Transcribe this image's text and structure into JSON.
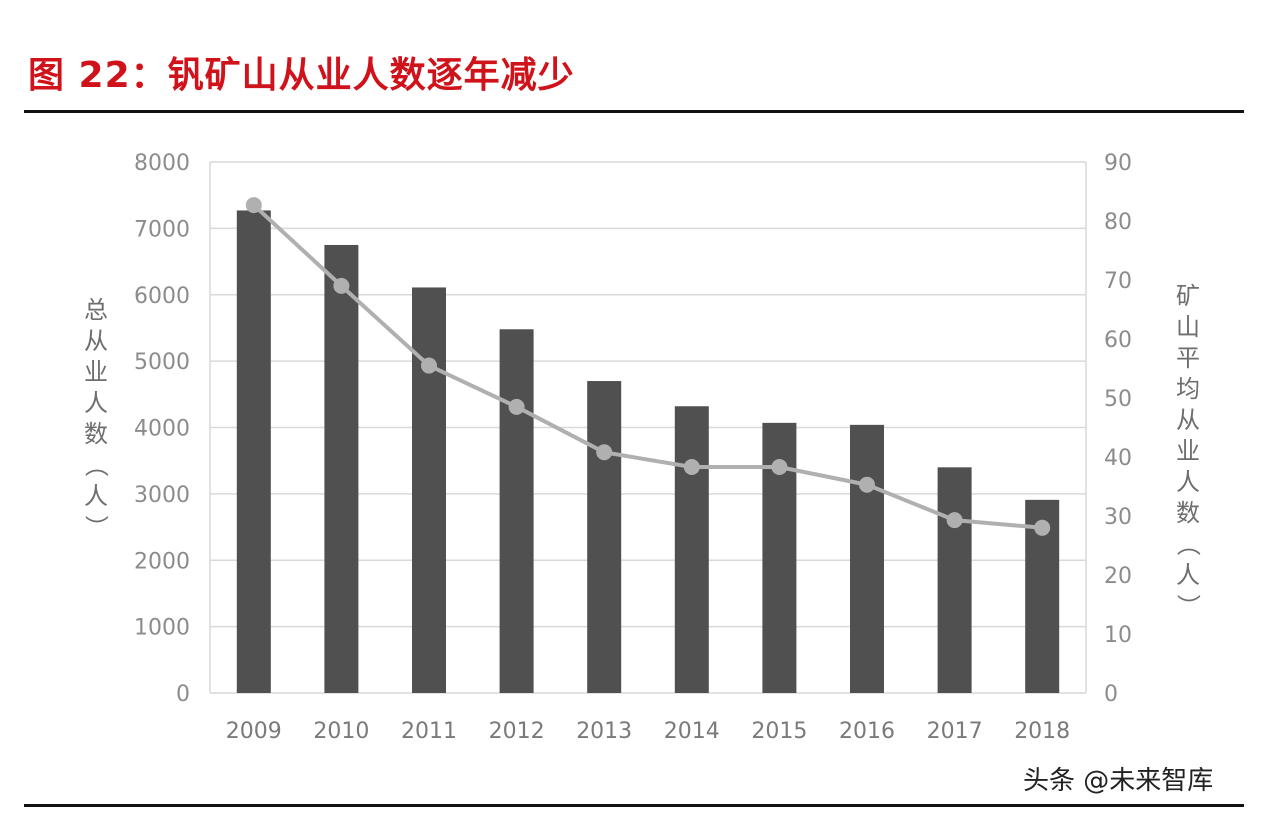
{
  "figure": {
    "title": "图 22：钒矿山从业人数逐年减少",
    "watermark": "头条 @未来智库"
  },
  "colors": {
    "title": "#d0121b",
    "bar": "#505050",
    "line": "#b0b0b0",
    "grid": "#d9d9d9",
    "tick_text": "#8c8c8c"
  },
  "chart_data": {
    "type": "bar+line",
    "title": "钒矿山从业人数逐年减少",
    "categories": [
      "2009",
      "2010",
      "2011",
      "2012",
      "2013",
      "2014",
      "2015",
      "2016",
      "2017",
      "2018"
    ],
    "series": [
      {
        "name": "总从业人数（人）",
        "type": "bar",
        "axis": "left",
        "values": [
          7270,
          6750,
          6110,
          5480,
          4700,
          4320,
          4070,
          4040,
          3400,
          2910
        ]
      },
      {
        "name": "矿山平均从业人数（人）",
        "type": "line",
        "axis": "right",
        "values": [
          82.7,
          69,
          55.5,
          48.5,
          40.8,
          38.3,
          38.3,
          35.3,
          29.3,
          28
        ]
      }
    ],
    "ylabel": "总从业人数（人）",
    "y2label": "矿山平均从业人数（人）",
    "ylim": [
      0,
      8000
    ],
    "y2lim": [
      0,
      90
    ],
    "yticks": [
      "0",
      "1000",
      "2000",
      "3000",
      "4000",
      "5000",
      "6000",
      "7000",
      "8000"
    ],
    "y2ticks": [
      "0",
      "10",
      "20",
      "30",
      "40",
      "50",
      "60",
      "70",
      "80",
      "90"
    ],
    "grid": true,
    "legend": "none"
  }
}
